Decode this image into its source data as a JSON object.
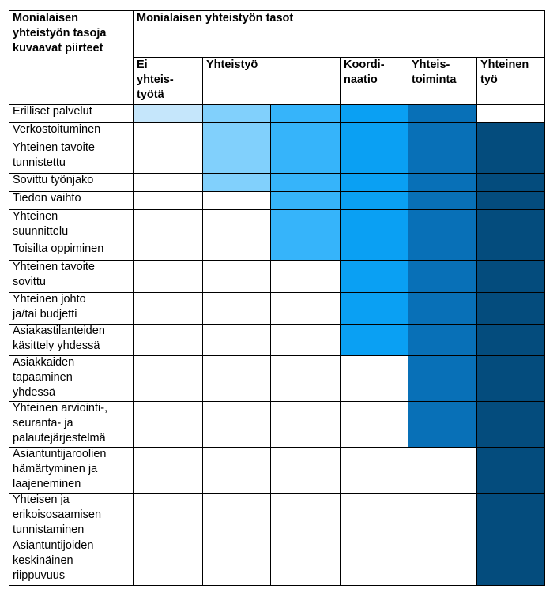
{
  "corner_header": "Monialaisen\nyhteistyön tasoja\nkuvaavat piirteet",
  "levels_header": "Monialaisen yhteistyön tasot",
  "levels": [
    {
      "id": "ei",
      "label": "Ei\nyhteis-\ntyötä",
      "color": "#c5e6fb"
    },
    {
      "id": "yht",
      "label": "Yhteistyö",
      "colors": [
        "#81d0fc",
        "#36b4fa"
      ]
    },
    {
      "id": "koord",
      "label": "Koordi-\nnaatio",
      "color": "#0aa0f3"
    },
    {
      "id": "yhtt",
      "label": "Yhteis-\ntoiminta",
      "color": "#0870b7"
    },
    {
      "id": "yhtty",
      "label": "Yhteinen\ntyö",
      "color": "#044c7d"
    }
  ],
  "rows": [
    {
      "label": "Erilliset palvelut",
      "fill": [
        1,
        1,
        1,
        1,
        1,
        0
      ]
    },
    {
      "label": "Verkostoituminen",
      "fill": [
        0,
        1,
        1,
        1,
        1,
        1
      ]
    },
    {
      "label": "Yhteinen tavoite\ntunnistettu",
      "fill": [
        0,
        1,
        1,
        1,
        1,
        1
      ]
    },
    {
      "label": "Sovittu työnjako",
      "fill": [
        0,
        1,
        1,
        1,
        1,
        1
      ]
    },
    {
      "label": "Tiedon vaihto",
      "fill": [
        0,
        0,
        1,
        1,
        1,
        1
      ]
    },
    {
      "label": "Yhteinen\nsuunnittelu",
      "fill": [
        0,
        0,
        1,
        1,
        1,
        1
      ]
    },
    {
      "label": "Toisilta oppiminen",
      "fill": [
        0,
        0,
        1,
        1,
        1,
        1
      ]
    },
    {
      "label": "Yhteinen tavoite\nsovittu",
      "fill": [
        0,
        0,
        0,
        1,
        1,
        1
      ]
    },
    {
      "label": "Yhteinen johto\nja/tai budjetti",
      "fill": [
        0,
        0,
        0,
        1,
        1,
        1
      ]
    },
    {
      "label": "Asiakastilanteiden\nkäsittely yhdessä",
      "fill": [
        0,
        0,
        0,
        1,
        1,
        1
      ]
    },
    {
      "label": "Asiakkaiden\ntapaaminen\nyhdessä",
      "fill": [
        0,
        0,
        0,
        0,
        1,
        1
      ]
    },
    {
      "label": "Yhteinen arviointi-,\nseuranta- ja\npalautejärjestelmä",
      "fill": [
        0,
        0,
        0,
        0,
        1,
        1
      ]
    },
    {
      "label": "Asiantuntijaroolien\nhämärtyminen ja\nlaajeneminen",
      "fill": [
        0,
        0,
        0,
        0,
        0,
        1
      ]
    },
    {
      "label": "Yhteisen ja\nerikoisosaamisen\ntunnistaminen",
      "fill": [
        0,
        0,
        0,
        0,
        0,
        1
      ]
    },
    {
      "label": "Asiantuntijoiden\nkeskinäinen\nriippuvuus",
      "fill": [
        0,
        0,
        0,
        0,
        0,
        1
      ]
    }
  ]
}
